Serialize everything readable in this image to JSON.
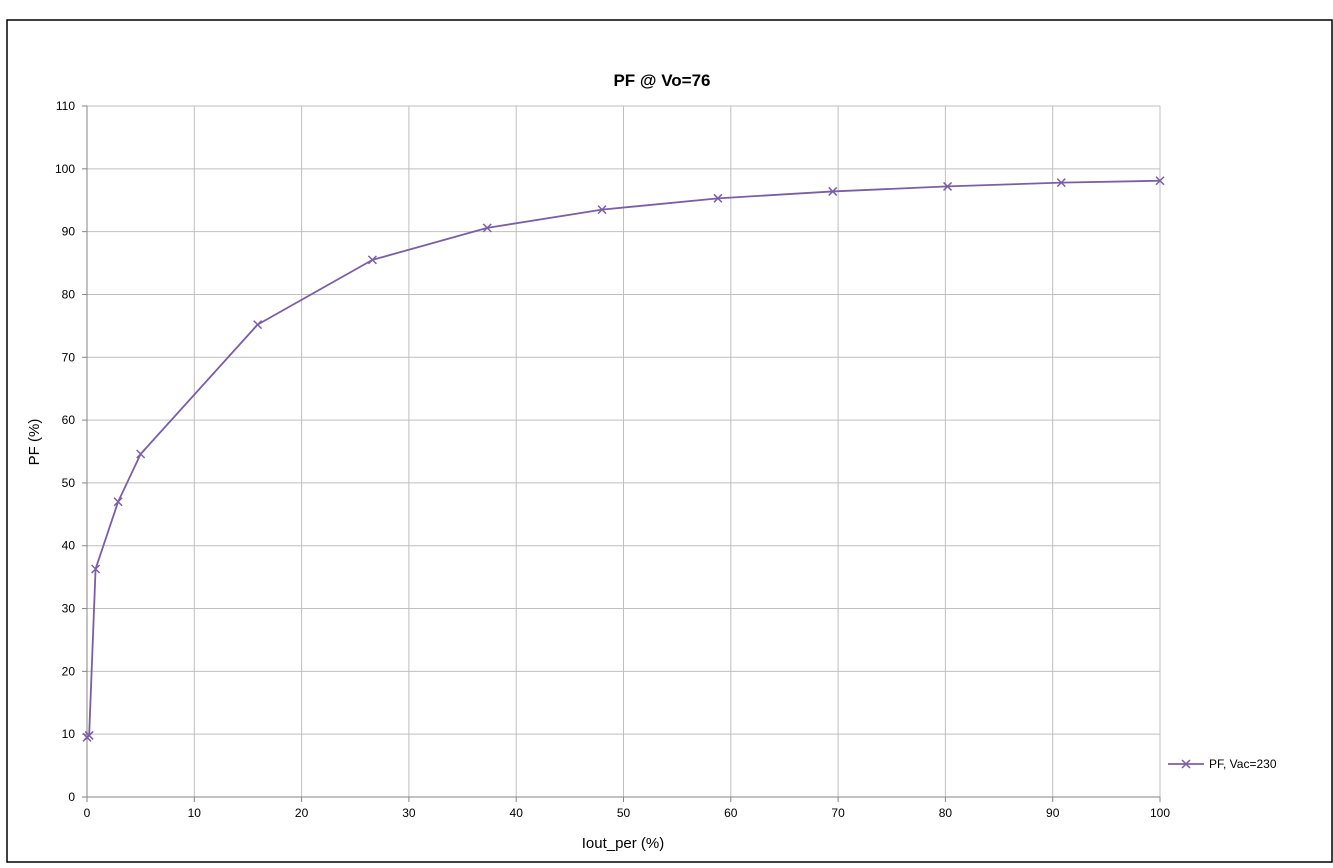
{
  "chart_data": {
    "type": "line",
    "title": "PF @ Vo=76",
    "xlabel": "Iout_per (%)",
    "ylabel": "PF (%)",
    "xlim": [
      0,
      100
    ],
    "ylim": [
      0,
      110
    ],
    "x_ticks": [
      0,
      10,
      20,
      30,
      40,
      50,
      60,
      70,
      80,
      90,
      100
    ],
    "y_ticks": [
      0,
      10,
      20,
      30,
      40,
      50,
      60,
      70,
      80,
      90,
      100,
      110
    ],
    "grid": true,
    "legend_position": "right",
    "series": [
      {
        "name": "PF, Vac=230",
        "color": "#7b5ea7",
        "marker": "x",
        "x": [
          0,
          0.2,
          0.8,
          2.9,
          5.0,
          15.9,
          26.6,
          37.3,
          48.0,
          58.8,
          69.5,
          80.2,
          90.8,
          100
        ],
        "y": [
          9.5,
          9.8,
          36.3,
          47.0,
          54.6,
          75.2,
          85.5,
          90.6,
          93.5,
          95.3,
          96.4,
          97.2,
          97.8,
          98.1
        ]
      }
    ]
  }
}
